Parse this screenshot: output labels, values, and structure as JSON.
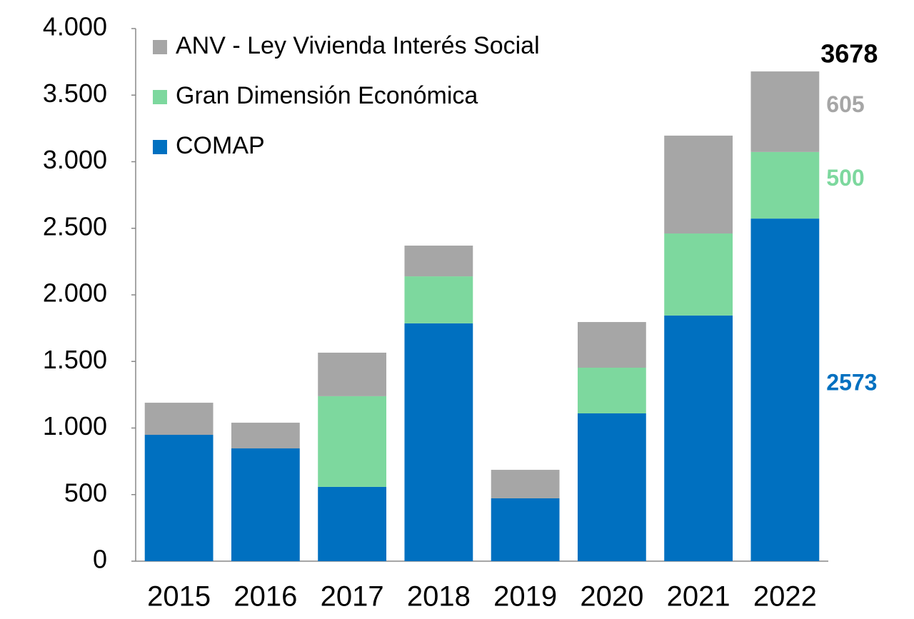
{
  "chart_data": {
    "type": "stacked_bar",
    "categories": [
      "2015",
      "2016",
      "2017",
      "2018",
      "2019",
      "2020",
      "2021",
      "2022"
    ],
    "series": [
      {
        "name": "COMAP",
        "color": "#0070c0",
        "values": [
          949,
          847,
          558,
          1786,
          472,
          1110,
          1845,
          2573
        ],
        "value_labels": [
          null,
          null,
          null,
          null,
          null,
          null,
          null,
          "2573"
        ]
      },
      {
        "name": "Gran Dimensión Económica",
        "color": "#7dd89e",
        "values": [
          0,
          0,
          681,
          353,
          0,
          343,
          616,
          500
        ],
        "value_labels": [
          null,
          null,
          null,
          null,
          null,
          null,
          null,
          "500"
        ]
      },
      {
        "name": "ANV - Ley Vivienda Interés Social",
        "color": "#a6a6a6",
        "values": [
          241,
          193,
          327,
          231,
          214,
          343,
          735,
          605
        ],
        "value_labels": [
          null,
          null,
          null,
          null,
          null,
          null,
          null,
          "605"
        ]
      }
    ],
    "total_value": 3678,
    "ylim": [
      0,
      4000
    ],
    "yticks": [
      0,
      500,
      {
        "value": 1000,
        "label": "1.000"
      },
      {
        "value": 1500,
        "label": "1.500"
      },
      {
        "value": 2000,
        "label": "2.000"
      },
      {
        "value": 2500,
        "label": "2.500"
      },
      {
        "value": 3000,
        "label": "3.000"
      },
      {
        "value": 3500,
        "label": "3.500"
      },
      {
        "value": 4000,
        "label": "4.000"
      }
    ],
    "grid": false,
    "legend": "upper left"
  }
}
